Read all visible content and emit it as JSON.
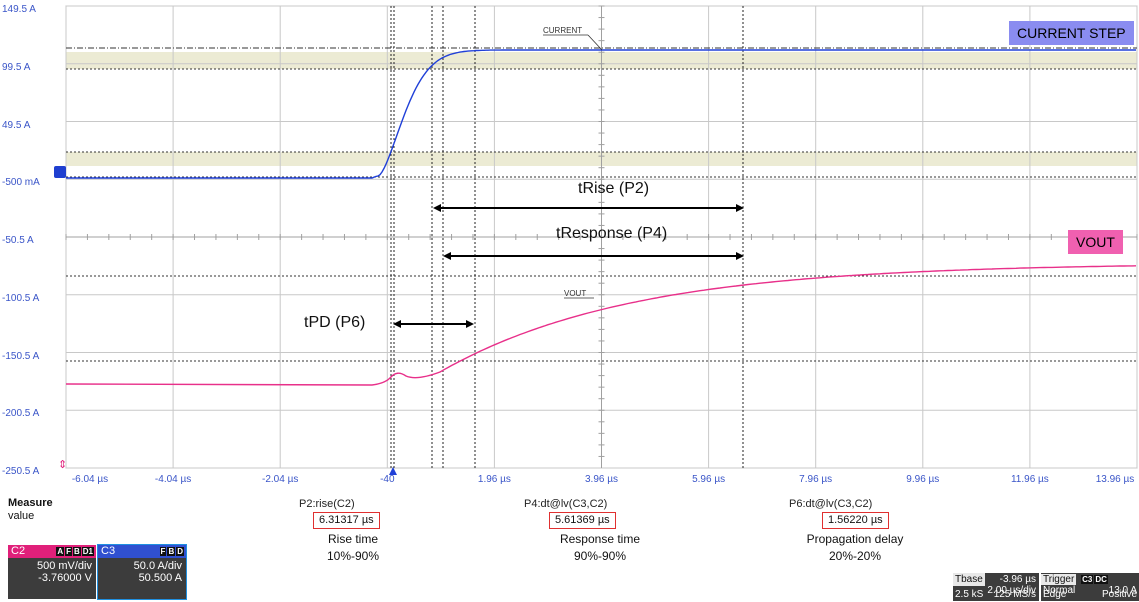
{
  "y_axis_labels": [
    "149.5 A",
    "99.5 A",
    "49.5 A",
    "-500 mA",
    "-50.5 A",
    "-100.5 A",
    "-150.5 A",
    "-200.5 A",
    "-250.5 A"
  ],
  "x_axis_labels": [
    "-6.04 µs",
    "-4.04 µs",
    "-2.04 µs",
    "-40",
    "1.96 µs",
    "3.96 µs",
    "5.96 µs",
    "7.96 µs",
    "9.96 µs",
    "11.96 µs",
    "13.96 µs"
  ],
  "tags": {
    "current_step": "CURRENT STEP",
    "vout": "VOUT",
    "current_trace_label": "CURRENT",
    "vout_trace_label": "VOUT"
  },
  "annotations": {
    "t_rise": "tRise  (P2)",
    "t_response": "tResponse (P4)",
    "t_pd": "tPD (P6)"
  },
  "measure": {
    "title": "Measure",
    "row_label": "value",
    "items": [
      {
        "header": "P2:rise(C2)",
        "value": "6.31317 µs",
        "desc1": "Rise time",
        "desc2": "10%-90%"
      },
      {
        "header": "P4:dt@lv(C3,C2)",
        "value": "5.61369 µs",
        "desc1": "Response time",
        "desc2": "90%-90%"
      },
      {
        "header": "P6:dt@lv(C3,C2)",
        "value": "1.56220 µs",
        "desc1": "Propagation delay",
        "desc2": "20%-20%"
      }
    ]
  },
  "channels": {
    "c2": {
      "name": "C2",
      "badges": [
        "A",
        "F",
        "B",
        "D1"
      ],
      "scale": "500 mV/div",
      "offset": "-3.76000 V",
      "color": "#e0207a"
    },
    "c3": {
      "name": "C3",
      "badges": [
        "F",
        "B",
        "D"
      ],
      "scale": "50.0 A/div",
      "offset": "50.500 A",
      "color": "#3050d0"
    }
  },
  "timebase": {
    "label": "Tbase",
    "delay": "-3.96 µs",
    "scale": "2.00 µs/div",
    "samples": "2.5 kS",
    "rate": "125 MS/s"
  },
  "trigger": {
    "label": "Trigger",
    "badges": [
      "C3",
      "DC"
    ],
    "mode": "Normal",
    "level": "13.0 A",
    "type": "Edge",
    "slope": "Positive"
  },
  "colors": {
    "current_trace": "#2040d8",
    "vout_trace": "#e8308a",
    "grid": "#c8c8c8",
    "band": "#ecebd4",
    "tag_current_bg": "#8a8cf0",
    "tag_vout_bg": "#f060b0"
  }
}
